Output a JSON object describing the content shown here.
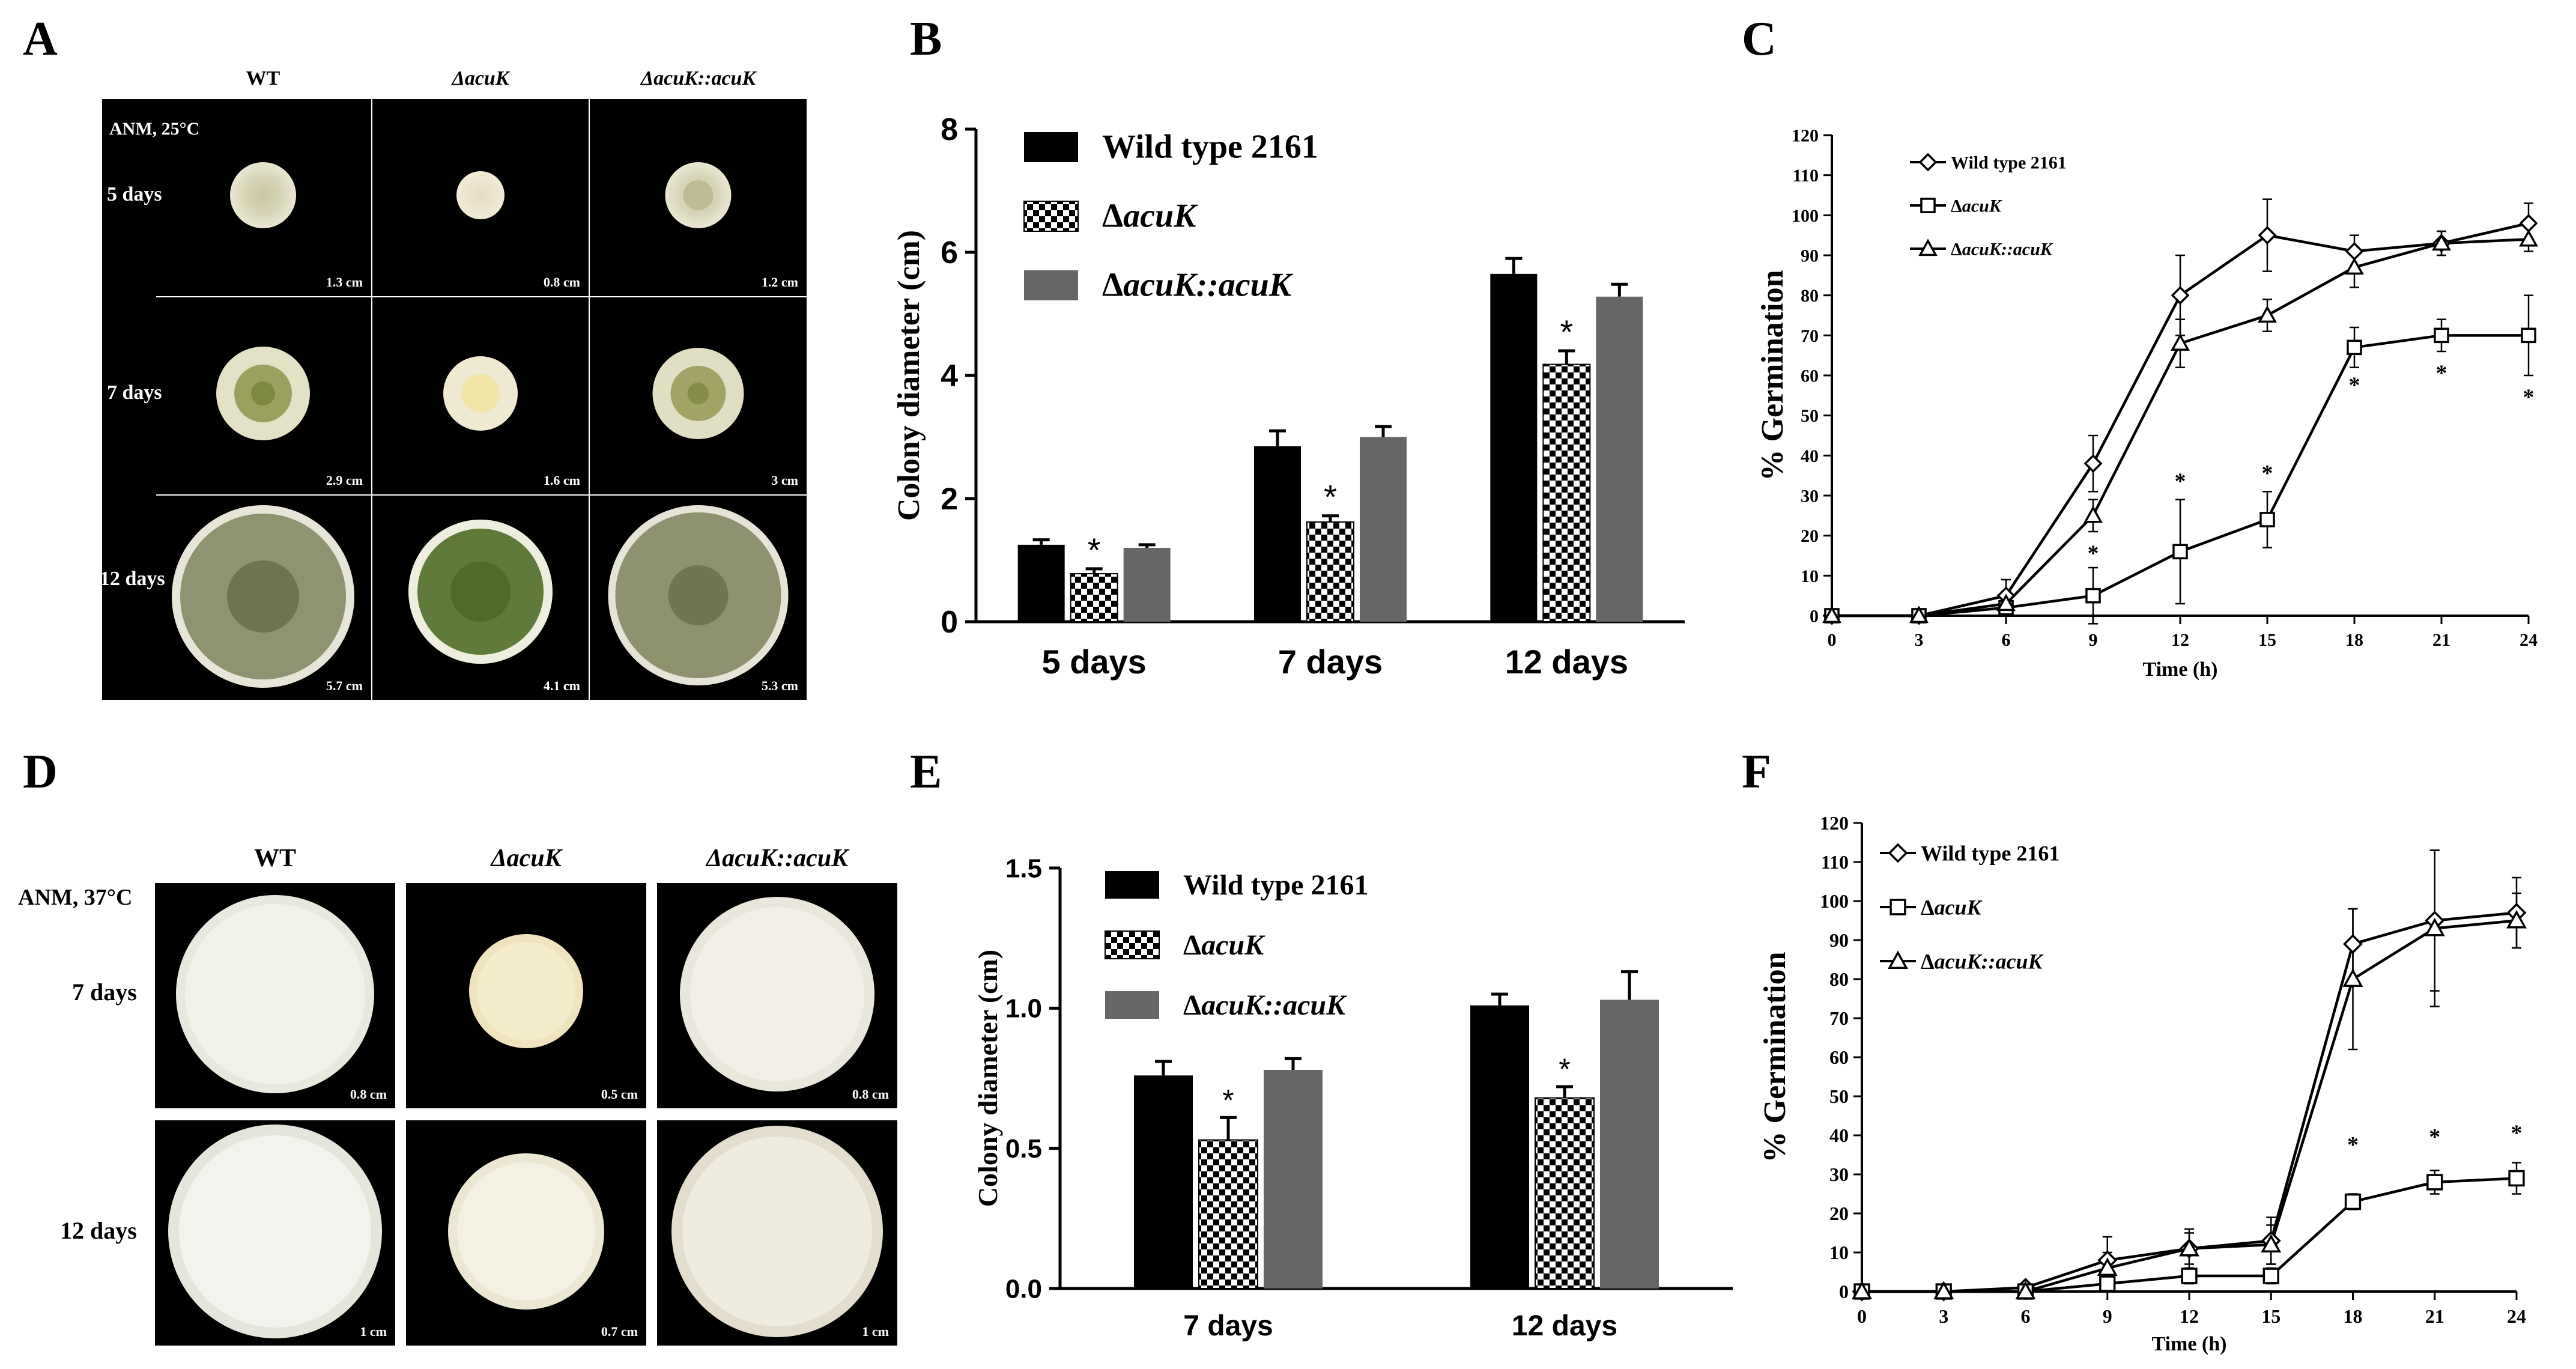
{
  "figure": {
    "panel_letters": [
      "A",
      "B",
      "C",
      "D",
      "E",
      "F"
    ]
  },
  "panel_a": {
    "condition": "ANM, 25°C",
    "columns": [
      "WT",
      "ΔacuK",
      "ΔacuK::acuK"
    ],
    "rows": [
      {
        "label": "5 days",
        "sizes": [
          "1.3 cm",
          "0.8 cm",
          "1.2 cm"
        ]
      },
      {
        "label": "7 days",
        "sizes": [
          "2.9 cm",
          "1.6 cm",
          "3 cm"
        ]
      },
      {
        "label": "12 days",
        "sizes": [
          "5.7 cm",
          "4.1 cm",
          "5.3 cm"
        ]
      }
    ]
  },
  "panel_d": {
    "condition": "ANM, 37°C",
    "columns": [
      "WT",
      "ΔacuK",
      "ΔacuK::acuK"
    ],
    "rows": [
      {
        "label": "7 days",
        "sizes": [
          "0.8 cm",
          "0.5 cm",
          "0.8 cm"
        ]
      },
      {
        "label": "12 days",
        "sizes": [
          "1 cm",
          "0.7 cm",
          "1 cm"
        ]
      }
    ]
  },
  "chart_data": [
    {
      "panel": "B",
      "type": "bar",
      "categories": [
        "5 days",
        "7 days",
        "12 days"
      ],
      "series": [
        {
          "name": "Wild type 2161",
          "values": [
            1.25,
            2.85,
            5.65
          ],
          "errors": [
            0.08,
            0.25,
            0.25
          ],
          "color": "#000000",
          "pattern": "solid"
        },
        {
          "name": "ΔacuK",
          "values": [
            0.78,
            1.62,
            4.18
          ],
          "errors": [
            0.08,
            0.1,
            0.22
          ],
          "color": "#000000",
          "pattern": "checker"
        },
        {
          "name": "ΔacuK::acuK",
          "values": [
            1.2,
            3.0,
            5.28
          ],
          "errors": [
            0.05,
            0.17,
            0.2
          ],
          "color": "#666666",
          "pattern": "solid"
        }
      ],
      "significance": [
        "*",
        "*",
        "*"
      ],
      "ylabel": "Colony diameter (cm)",
      "ylim": [
        0,
        8
      ],
      "yticks": [
        "0",
        "2",
        "4",
        "6",
        "8"
      ]
    },
    {
      "panel": "C",
      "type": "line",
      "x": [
        0,
        3,
        6,
        9,
        12,
        15,
        18,
        21,
        24
      ],
      "xticks": [
        "0",
        "3",
        "6",
        "9",
        "12",
        "15",
        "18",
        "21",
        "24"
      ],
      "series": [
        {
          "name": "Wild type 2161",
          "marker": "diamond",
          "values": [
            0,
            0,
            5,
            38,
            80,
            95,
            91,
            93,
            98
          ],
          "errors": [
            0,
            0,
            4,
            7,
            10,
            9,
            4,
            3,
            5
          ]
        },
        {
          "name": "ΔacuK",
          "marker": "square",
          "values": [
            0,
            0,
            2,
            5,
            16,
            24,
            67,
            70,
            70
          ],
          "errors": [
            0,
            0,
            1,
            7,
            13,
            7,
            5,
            4,
            10
          ]
        },
        {
          "name": "ΔacuK::acuK",
          "marker": "triangle",
          "values": [
            0,
            0,
            3,
            25,
            68,
            75,
            87,
            93,
            94
          ],
          "errors": [
            0,
            0,
            3,
            4,
            6,
            4,
            5,
            3,
            3
          ]
        }
      ],
      "significance_x": [
        9,
        12,
        15,
        18,
        21,
        24
      ],
      "significance_y": [
        16,
        34,
        36,
        58,
        61,
        55
      ],
      "xlabel": "Time (h)",
      "ylabel": "% Germination",
      "xlim": [
        0,
        24
      ],
      "ylim": [
        0,
        120
      ],
      "yticks": [
        "0",
        "10",
        "20",
        "30",
        "40",
        "50",
        "60",
        "70",
        "80",
        "90",
        "100",
        "110",
        "120"
      ]
    },
    {
      "panel": "E",
      "type": "bar",
      "categories": [
        "7 days",
        "12 days"
      ],
      "series": [
        {
          "name": "Wild type 2161",
          "values": [
            0.76,
            1.01
          ],
          "errors": [
            0.05,
            0.04
          ],
          "color": "#000000",
          "pattern": "solid"
        },
        {
          "name": "ΔacuK",
          "values": [
            0.53,
            0.68
          ],
          "errors": [
            0.08,
            0.04
          ],
          "color": "#000000",
          "pattern": "checker"
        },
        {
          "name": "ΔacuK::acuK",
          "values": [
            0.78,
            1.03
          ],
          "errors": [
            0.04,
            0.1
          ],
          "color": "#666666",
          "pattern": "solid"
        }
      ],
      "significance": [
        "*",
        "*"
      ],
      "ylabel": "Colony diameter (cm)",
      "ylim": [
        0,
        1.5
      ],
      "yticks": [
        "0.0",
        "0.5",
        "1.0",
        "1.5"
      ]
    },
    {
      "panel": "F",
      "type": "line",
      "x": [
        0,
        3,
        6,
        9,
        12,
        15,
        18,
        21,
        24
      ],
      "xticks": [
        "0",
        "3",
        "6",
        "9",
        "12",
        "15",
        "18",
        "21",
        "24"
      ],
      "series": [
        {
          "name": "Wild type 2161",
          "marker": "diamond",
          "values": [
            0,
            0,
            1,
            8,
            11,
            13,
            89,
            95,
            97
          ],
          "errors": [
            0,
            0,
            1,
            6,
            5,
            6,
            9,
            18,
            9
          ]
        },
        {
          "name": "ΔacuK",
          "marker": "square",
          "values": [
            0,
            0,
            0,
            2,
            4,
            4,
            23,
            28,
            29
          ],
          "errors": [
            0,
            0,
            0,
            1,
            2,
            2,
            2,
            3,
            4
          ]
        },
        {
          "name": "ΔacuK::acuK",
          "marker": "triangle",
          "values": [
            0,
            0,
            0,
            6,
            11,
            12,
            80,
            93,
            95
          ],
          "errors": [
            0,
            0,
            0,
            4,
            4,
            5,
            18,
            20,
            7
          ]
        }
      ],
      "significance_x": [
        18,
        21,
        24
      ],
      "significance_y": [
        38,
        40,
        41
      ],
      "xlabel": "Time (h)",
      "ylabel": "% Germination",
      "xlim": [
        0,
        24
      ],
      "ylim": [
        0,
        120
      ],
      "yticks": [
        "0",
        "10",
        "20",
        "30",
        "40",
        "50",
        "60",
        "70",
        "80",
        "90",
        "100",
        "110",
        "120"
      ]
    }
  ]
}
